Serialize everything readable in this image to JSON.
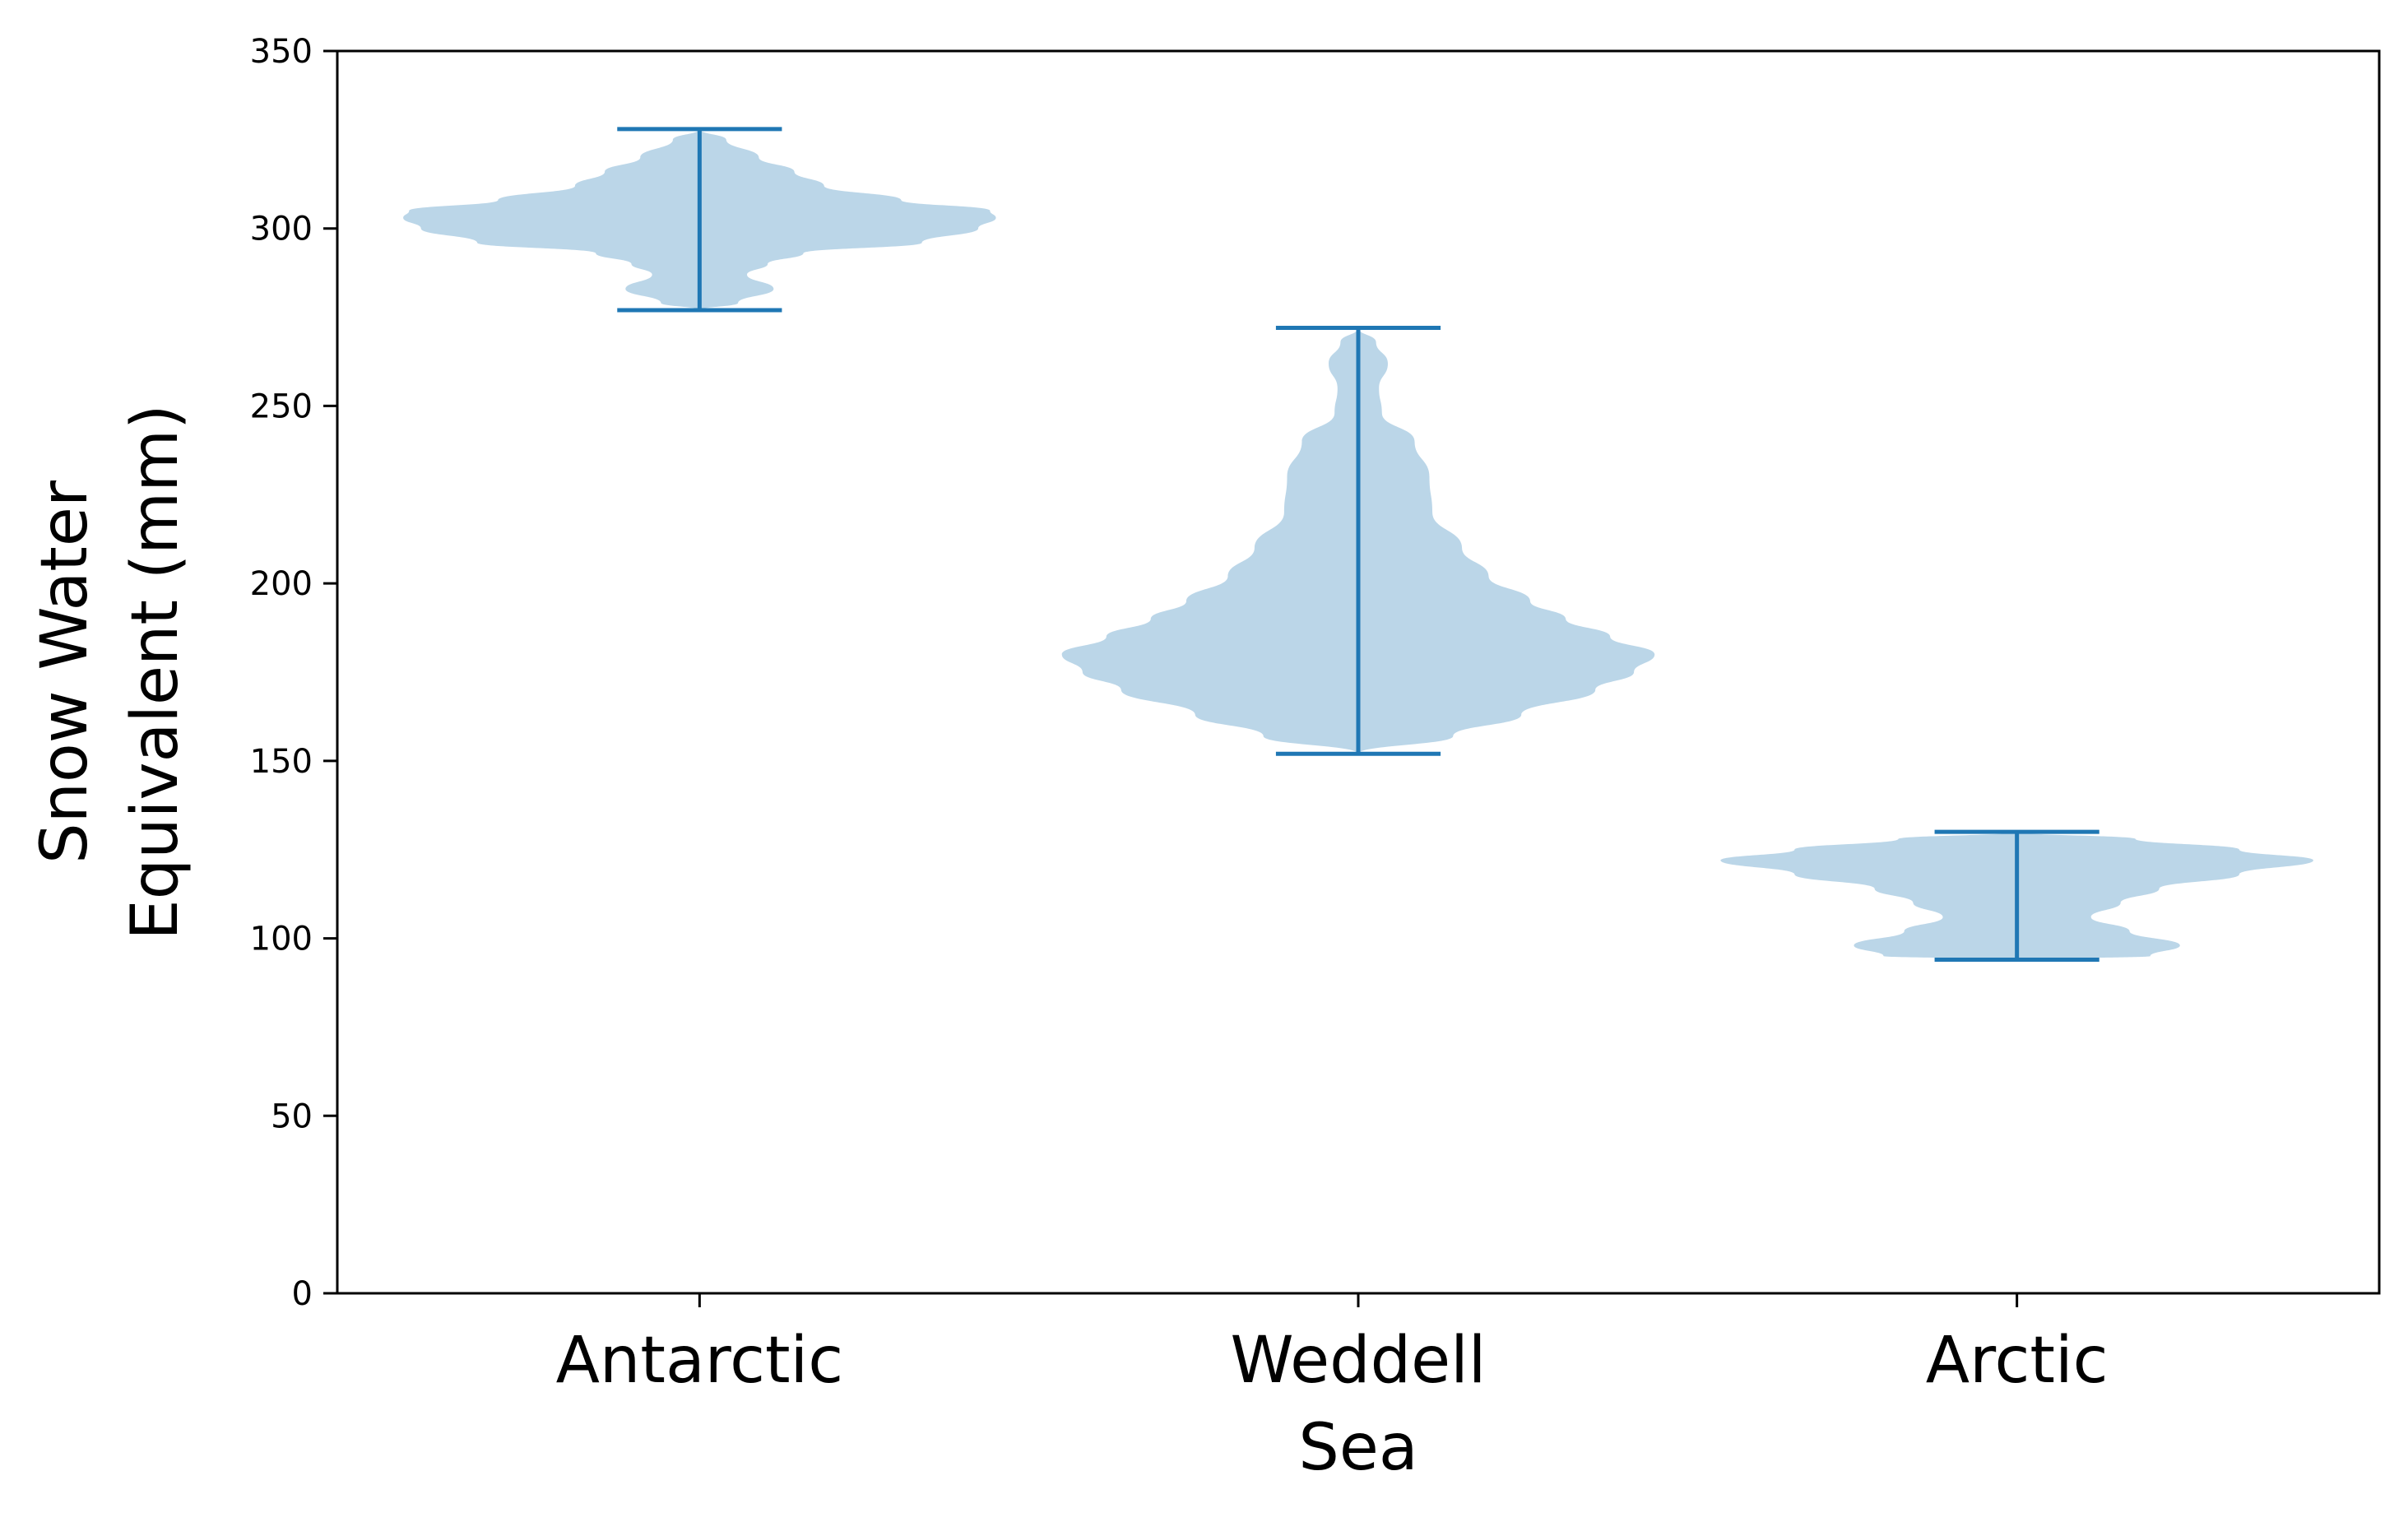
{
  "chart_data": {
    "type": "violin",
    "ylabel_lines": [
      "Snow Water",
      "Equivalent (mm)"
    ],
    "xlabel": "",
    "title": "",
    "ylim": [
      0,
      350
    ],
    "yticks": [
      0,
      50,
      100,
      150,
      200,
      250,
      300,
      350
    ],
    "grid": false,
    "legend": "none",
    "colors": {
      "body_fill": "#1f77b4",
      "line": "#1f77b4"
    },
    "categories": [
      {
        "label_lines": [
          "Antarctic"
        ],
        "min": 277,
        "max": 328,
        "density": [
          {
            "y": 277,
            "w": 0.0
          },
          {
            "y": 279,
            "w": 0.13
          },
          {
            "y": 283,
            "w": 0.25
          },
          {
            "y": 287,
            "w": 0.16
          },
          {
            "y": 290,
            "w": 0.23
          },
          {
            "y": 293,
            "w": 0.35
          },
          {
            "y": 296,
            "w": 0.75
          },
          {
            "y": 300,
            "w": 0.94
          },
          {
            "y": 303,
            "w": 1.0
          },
          {
            "y": 305,
            "w": 0.98
          },
          {
            "y": 308,
            "w": 0.68
          },
          {
            "y": 312,
            "w": 0.42
          },
          {
            "y": 316,
            "w": 0.32
          },
          {
            "y": 320,
            "w": 0.2
          },
          {
            "y": 325,
            "w": 0.09
          },
          {
            "y": 328,
            "w": 0.0
          }
        ]
      },
      {
        "label_lines": [
          "Weddell",
          "Sea"
        ],
        "min": 152,
        "max": 272,
        "density": [
          {
            "y": 152,
            "w": 0.0
          },
          {
            "y": 157,
            "w": 0.32
          },
          {
            "y": 163,
            "w": 0.55
          },
          {
            "y": 170,
            "w": 0.8
          },
          {
            "y": 175,
            "w": 0.93
          },
          {
            "y": 180,
            "w": 1.0
          },
          {
            "y": 185,
            "w": 0.85
          },
          {
            "y": 190,
            "w": 0.7
          },
          {
            "y": 195,
            "w": 0.58
          },
          {
            "y": 202,
            "w": 0.44
          },
          {
            "y": 210,
            "w": 0.35
          },
          {
            "y": 220,
            "w": 0.25
          },
          {
            "y": 230,
            "w": 0.24
          },
          {
            "y": 240,
            "w": 0.19
          },
          {
            "y": 248,
            "w": 0.08
          },
          {
            "y": 255,
            "w": 0.07
          },
          {
            "y": 262,
            "w": 0.1
          },
          {
            "y": 268,
            "w": 0.06
          },
          {
            "y": 272,
            "w": 0.0
          }
        ]
      },
      {
        "label_lines": [
          "Arctic"
        ],
        "min": 94,
        "max": 130,
        "density": [
          {
            "y": 94,
            "w": 0.0
          },
          {
            "y": 95,
            "w": 0.45
          },
          {
            "y": 98,
            "w": 0.55
          },
          {
            "y": 102,
            "w": 0.38
          },
          {
            "y": 106,
            "w": 0.25
          },
          {
            "y": 110,
            "w": 0.35
          },
          {
            "y": 114,
            "w": 0.48
          },
          {
            "y": 118,
            "w": 0.75
          },
          {
            "y": 122,
            "w": 1.0
          },
          {
            "y": 125,
            "w": 0.75
          },
          {
            "y": 128,
            "w": 0.4
          },
          {
            "y": 130,
            "w": 0.0
          }
        ]
      }
    ]
  }
}
